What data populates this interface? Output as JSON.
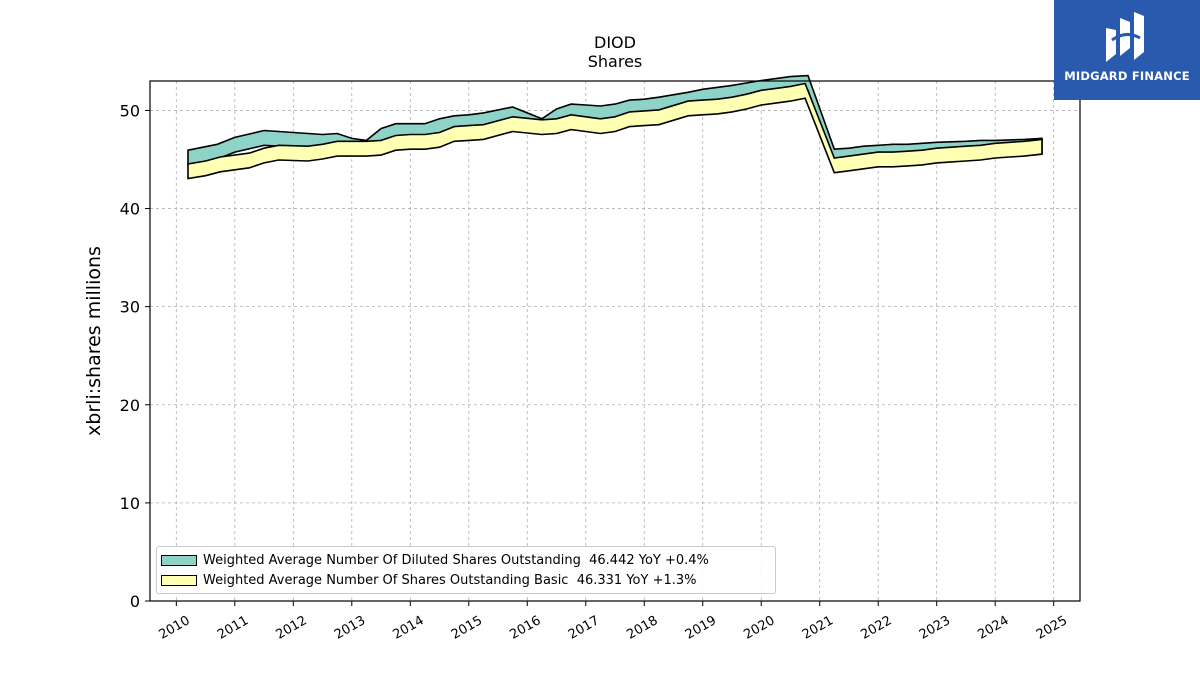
{
  "chart_data": {
    "type": "area",
    "title": "DIOD",
    "subtitle": "Shares",
    "xlabel": "",
    "ylabel": "xbrli:shares millions",
    "ylim": [
      0,
      53
    ],
    "xlim": [
      2009.55,
      2025.45
    ],
    "x_ticks": [
      "2010",
      "2011",
      "2012",
      "2013",
      "2014",
      "2015",
      "2016",
      "2017",
      "2018",
      "2019",
      "2020",
      "2021",
      "2022",
      "2023",
      "2024",
      "2025"
    ],
    "y_ticks": [
      "0",
      "10",
      "20",
      "30",
      "40",
      "50"
    ],
    "grid": true,
    "legend_position": "lower-left",
    "series": [
      {
        "name": "Weighted Average Number Of Diluted Shares Outstanding",
        "legend_label": "Weighted Average Number Of Diluted Shares Outstanding  46.442 YoY +0.4%",
        "color": "#8dd3c7",
        "x": [
          2010.2,
          2010.7,
          2011.0,
          2011.5,
          2012.0,
          2012.5,
          2012.75,
          2013.0,
          2013.25,
          2013.5,
          2013.75,
          2014.0,
          2014.25,
          2014.5,
          2014.75,
          2015.0,
          2015.25,
          2015.75,
          2016.25,
          2016.5,
          2016.75,
          2017.0,
          2017.25,
          2017.5,
          2017.75,
          2018.0,
          2018.25,
          2018.75,
          2019.0,
          2019.5,
          2020.0,
          2020.5,
          2020.8,
          2021.25,
          2021.5,
          2021.75,
          2022.0,
          2022.25,
          2022.5,
          2022.75,
          2023.0,
          2023.5,
          2023.75,
          2024.0,
          2024.5,
          2024.8
        ],
        "values": [
          45.2,
          45.8,
          46.5,
          47.2,
          47.0,
          46.8,
          46.9,
          46.4,
          46.2,
          47.4,
          47.9,
          47.9,
          47.9,
          48.4,
          48.7,
          48.8,
          49.0,
          49.6,
          48.4,
          49.4,
          49.9,
          49.8,
          49.7,
          49.9,
          50.3,
          50.4,
          50.6,
          51.1,
          51.4,
          51.8,
          52.3,
          52.7,
          52.8,
          45.3,
          45.4,
          45.6,
          45.7,
          45.8,
          45.8,
          45.9,
          46.0,
          46.1,
          46.2,
          46.2,
          46.3,
          46.4
        ]
      },
      {
        "name": "Weighted Average Number Of Shares Outstanding Basic",
        "legend_label": "Weighted Average Number Of Shares Outstanding Basic  46.331 YoY +1.3%",
        "color": "#ffffb3",
        "x": [
          2010.2,
          2010.5,
          2010.75,
          2011.25,
          2011.5,
          2011.75,
          2012.25,
          2012.5,
          2012.75,
          2013.0,
          2013.25,
          2013.5,
          2013.75,
          2014.0,
          2014.25,
          2014.5,
          2014.75,
          2015.0,
          2015.25,
          2015.75,
          2016.25,
          2016.5,
          2016.75,
          2017.0,
          2017.25,
          2017.5,
          2017.75,
          2018.0,
          2018.25,
          2018.75,
          2019.0,
          2019.25,
          2019.5,
          2019.75,
          2020.0,
          2020.25,
          2020.5,
          2020.75,
          2021.25,
          2021.5,
          2021.75,
          2022.0,
          2022.25,
          2022.5,
          2022.75,
          2023.0,
          2023.25,
          2023.5,
          2023.75,
          2024.0,
          2024.25,
          2024.5,
          2024.8
        ],
        "values": [
          43.8,
          44.1,
          44.5,
          44.9,
          45.4,
          45.7,
          45.6,
          45.8,
          46.1,
          46.1,
          46.1,
          46.2,
          46.7,
          46.8,
          46.8,
          47.0,
          47.6,
          47.7,
          47.8,
          48.6,
          48.3,
          48.4,
          48.8,
          48.6,
          48.4,
          48.6,
          49.1,
          49.2,
          49.3,
          50.2,
          50.3,
          50.4,
          50.6,
          50.9,
          51.3,
          51.5,
          51.7,
          52.0,
          44.4,
          44.6,
          44.8,
          45.0,
          45.0,
          45.1,
          45.2,
          45.4,
          45.5,
          45.6,
          45.7,
          45.9,
          46.0,
          46.1,
          46.3
        ]
      }
    ]
  },
  "brand": {
    "name": "MIDGARD FINANCE",
    "color": "#2a5aad"
  }
}
